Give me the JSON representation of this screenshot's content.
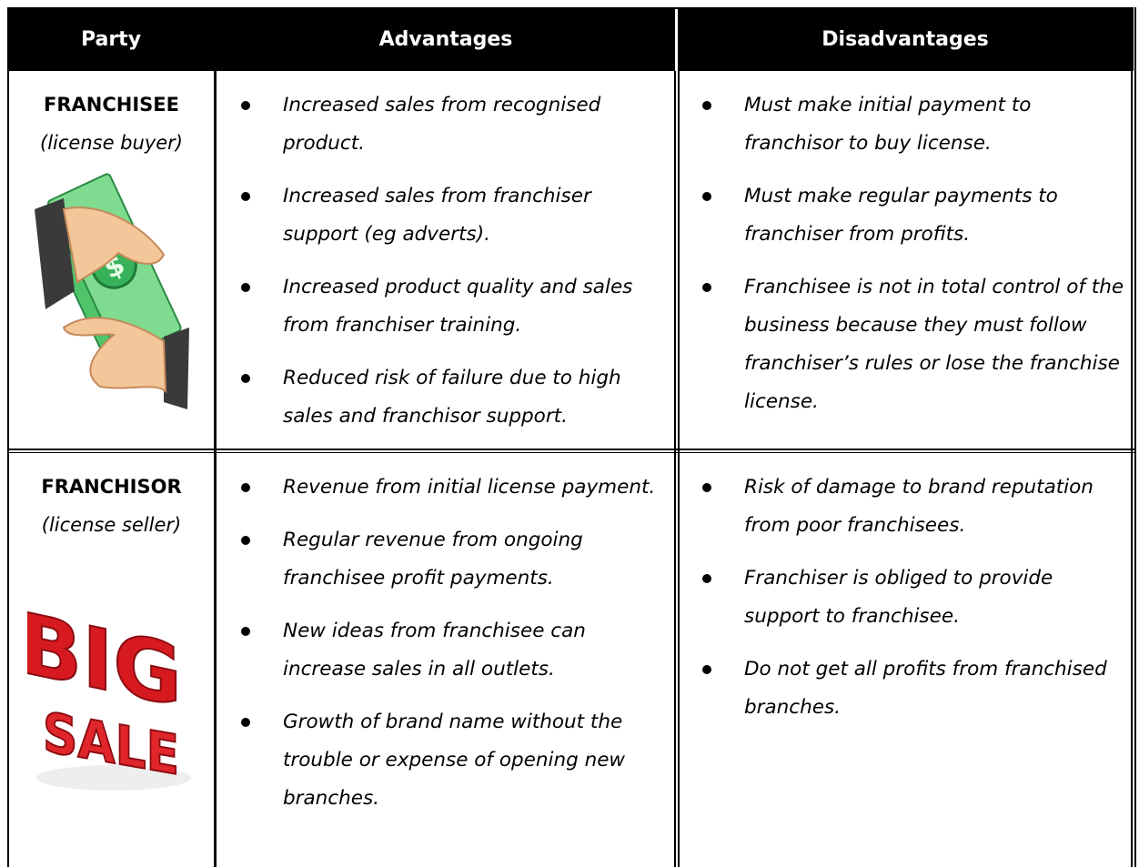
{
  "table": {
    "header": [
      "Party",
      "Advantages",
      "Disadvantages"
    ],
    "rows": [
      {
        "party": "FRANCHISEE",
        "role": "(license buyer)",
        "advantages": [
          "Increased sales from recognised product.",
          "Increased sales from franchiser support (eg adverts).",
          "Increased product quality and sales from franchiser training.",
          "Reduced risk of failure due to high sales and franchisor support."
        ],
        "disadvantages": [
          "Must make initial payment to franchisor to buy license.",
          "Must make regular payments to franchiser from profits.",
          "Franchisee is not in total control of the business because they must follow franchiser’s rules or lose the franchise license."
        ]
      },
      {
        "party": "FRANCHISOR",
        "role": "(license seller)",
        "image_text": [
          "BIG",
          "SALE"
        ],
        "advantages": [
          "Revenue from initial license payment.",
          "Regular revenue from ongoing franchisee profit payments.",
          "New ideas from franchisee can increase sales in all outlets.",
          "Growth of brand name without the trouble or expense of opening new branches."
        ],
        "disadvantages": [
          "Risk of damage to brand reputation from poor franchisees.",
          "Franchiser is obliged to provide support to franchisee.",
          "Do not get all profits from franchised branches."
        ]
      }
    ]
  }
}
